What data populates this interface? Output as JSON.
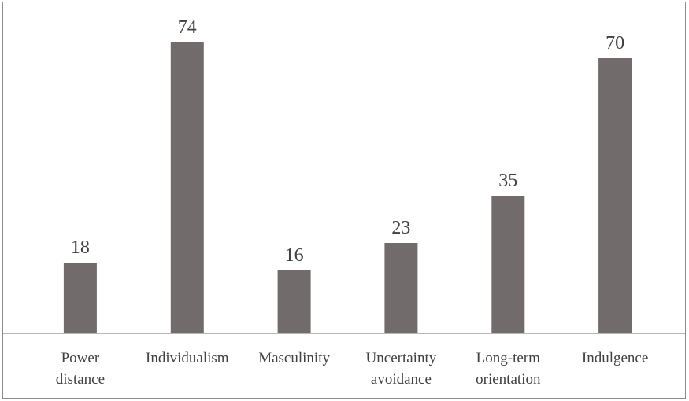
{
  "chart_data": {
    "type": "bar",
    "categories": [
      [
        "Power",
        "distance"
      ],
      [
        "Individualism"
      ],
      [
        "Masculinity"
      ],
      [
        "Uncertainty",
        "avoidance"
      ],
      [
        "Long-term",
        "orientation"
      ],
      [
        "Indulgence"
      ]
    ],
    "values": [
      18,
      74,
      16,
      23,
      35,
      70
    ],
    "title": "",
    "xlabel": "",
    "ylabel": "",
    "ylim": [
      0,
      80
    ],
    "grid": false,
    "legend": "none",
    "data_labels": true,
    "colors": {
      "bar": "#716c6b",
      "axis": "#8c8c8c",
      "text": "#404040"
    }
  }
}
